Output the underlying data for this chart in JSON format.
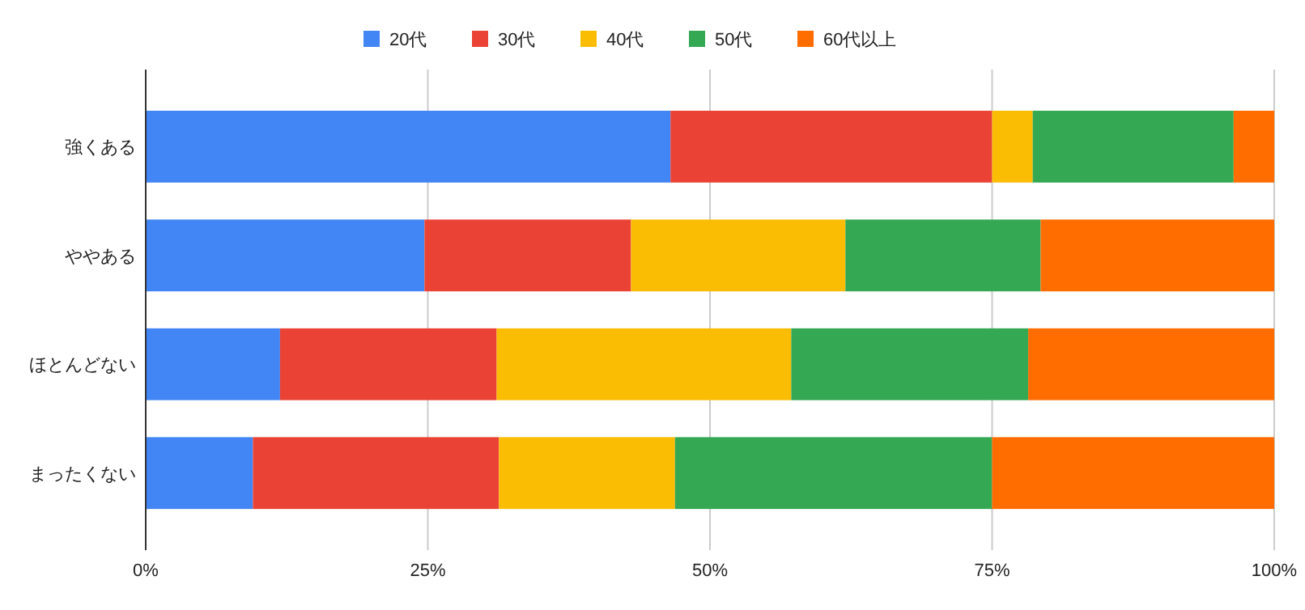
{
  "chart_data": {
    "type": "bar",
    "orientation": "horizontal",
    "stacked": true,
    "categories": [
      "強くある",
      "ややある",
      "ほとんどない",
      "まったくない"
    ],
    "series": [
      {
        "name": "20代",
        "color": "#4285f4",
        "values": [
          46.5,
          24.7,
          11.9,
          9.5
        ]
      },
      {
        "name": "30代",
        "color": "#ea4335",
        "values": [
          28.5,
          18.3,
          19.2,
          21.8
        ]
      },
      {
        "name": "40代",
        "color": "#fbbc04",
        "values": [
          3.6,
          19.0,
          26.1,
          15.6
        ]
      },
      {
        "name": "50代",
        "color": "#34a853",
        "values": [
          17.8,
          17.3,
          21.0,
          28.1
        ]
      },
      {
        "name": "60代以上",
        "color": "#ff6d01",
        "values": [
          3.6,
          20.7,
          21.8,
          25.0
        ]
      }
    ],
    "xlim": [
      0,
      100
    ],
    "xticks": [
      {
        "value": 0,
        "label": "0%"
      },
      {
        "value": 25,
        "label": "25%"
      },
      {
        "value": 50,
        "label": "50%"
      },
      {
        "value": 75,
        "label": "75%"
      },
      {
        "value": 100,
        "label": "100%"
      }
    ],
    "grid": "x",
    "legend": "top"
  }
}
